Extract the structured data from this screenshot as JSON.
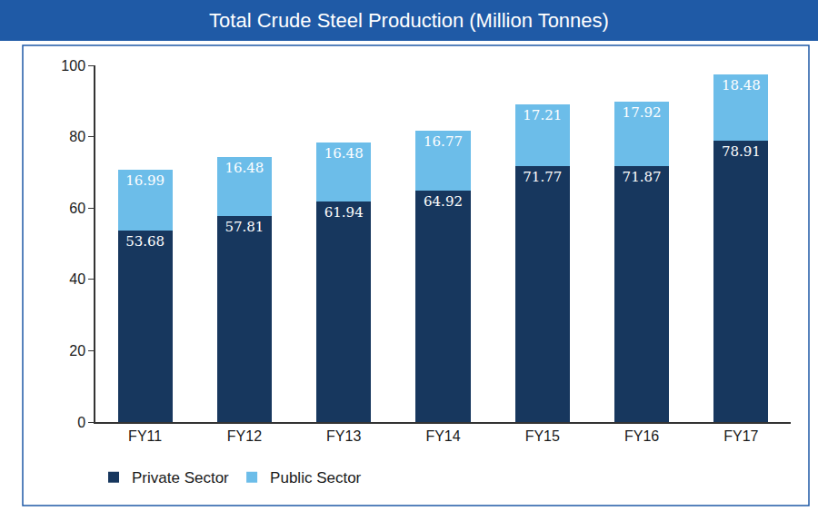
{
  "chart_data": {
    "type": "bar",
    "title": "Total Crude Steel Production (Million Tonnes)",
    "categories": [
      "FY11",
      "FY12",
      "FY13",
      "FY14",
      "FY15",
      "FY16",
      "FY17"
    ],
    "series": [
      {
        "name": "Private Sector",
        "color": "#17375e",
        "values": [
          53.68,
          57.81,
          61.94,
          64.92,
          71.77,
          71.87,
          78.91
        ]
      },
      {
        "name": "Public Sector",
        "color": "#6cbde9",
        "values": [
          16.99,
          16.48,
          16.48,
          16.77,
          17.21,
          17.92,
          18.48
        ]
      }
    ],
    "stacked": true,
    "data_labels": true,
    "ylim": [
      0,
      100
    ],
    "yticks": [
      0,
      20,
      40,
      60,
      80,
      100
    ],
    "grid": false,
    "legend": "bottom left"
  }
}
